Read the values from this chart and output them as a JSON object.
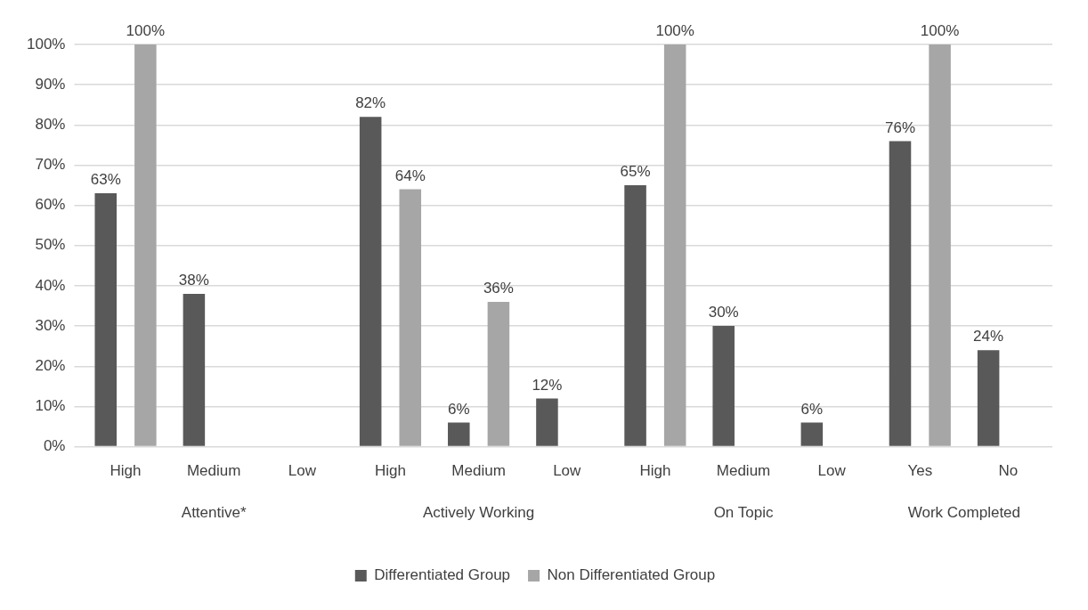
{
  "chart_data": {
    "type": "bar",
    "categories": [
      "High",
      "Medium",
      "Low",
      "High",
      "Medium",
      "Low",
      "High",
      "Medium",
      "Low",
      "Yes",
      "No"
    ],
    "series": [
      {
        "name": "Differentiated Group",
        "color": "#595959",
        "values": [
          63,
          38,
          0,
          82,
          6,
          12,
          65,
          30,
          6,
          76,
          24
        ],
        "value_labels": [
          "63%",
          "38%",
          null,
          "82%",
          "6%",
          "12%",
          "65%",
          "30%",
          "6%",
          "76%",
          "24%"
        ]
      },
      {
        "name": "Non Differentiated Group",
        "color": "#a6a6a6",
        "values": [
          100,
          0,
          0,
          64,
          36,
          0,
          100,
          0,
          0,
          100,
          0
        ],
        "value_labels": [
          "100%",
          null,
          null,
          "64%",
          "36%",
          null,
          "100%",
          null,
          null,
          "100%",
          null
        ]
      }
    ],
    "ylim": [
      0,
      100
    ],
    "yticks": [
      {
        "value": 0,
        "label": "0%"
      },
      {
        "value": 10,
        "label": "10%"
      },
      {
        "value": 20,
        "label": "20%"
      },
      {
        "value": 30,
        "label": "30%"
      },
      {
        "value": 40,
        "label": "40%"
      },
      {
        "value": 50,
        "label": "50%"
      },
      {
        "value": 60,
        "label": "60%"
      },
      {
        "value": 70,
        "label": "70%"
      },
      {
        "value": 80,
        "label": "80%"
      },
      {
        "value": 90,
        "label": "90%"
      },
      {
        "value": 100,
        "label": "100%"
      }
    ],
    "grid": "y",
    "legend": "bottom",
    "annotations": [
      "Attentive*",
      "Actively Working",
      "On Topic",
      "Work Completed"
    ]
  }
}
